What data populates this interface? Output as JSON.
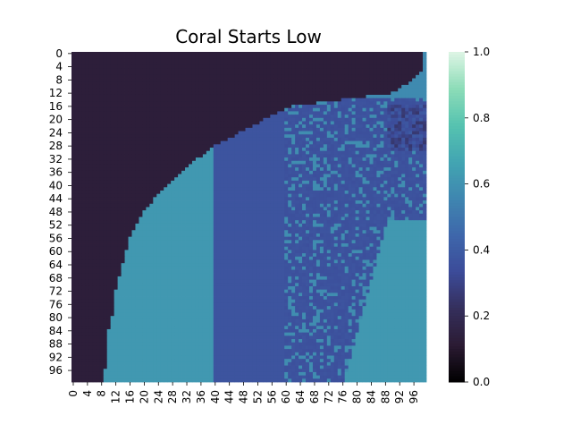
{
  "chart_data": {
    "type": "heatmap",
    "title": "Coral Starts Low",
    "xlabel": "",
    "ylabel": "",
    "rows": 100,
    "cols": 100,
    "x_tick_labels": [
      "0",
      "4",
      "8",
      "12",
      "16",
      "20",
      "24",
      "28",
      "32",
      "36",
      "40",
      "44",
      "48",
      "52",
      "56",
      "60",
      "64",
      "68",
      "72",
      "76",
      "80",
      "84",
      "88",
      "92",
      "96"
    ],
    "y_tick_labels": [
      "0",
      "4",
      "8",
      "12",
      "16",
      "20",
      "24",
      "28",
      "32",
      "36",
      "40",
      "44",
      "48",
      "52",
      "56",
      "60",
      "64",
      "68",
      "72",
      "76",
      "80",
      "84",
      "88",
      "92",
      "96"
    ],
    "colorbar": {
      "vmin": 0.0,
      "vmax": 1.0,
      "tick_labels": [
        "0.0",
        "0.2",
        "0.4",
        "0.6",
        "0.8",
        "1.0"
      ],
      "stops": [
        "#000000",
        "#2b1b33",
        "#352f5c",
        "#3c4b99",
        "#3e67ab",
        "#3f86b0",
        "#42a5b2",
        "#56c3b0",
        "#8ddcb8",
        "#def5e5"
      ]
    },
    "boundary_row_start_col": {
      "rows": [
        0,
        2,
        4,
        8,
        12,
        16,
        20,
        24,
        28,
        32,
        36,
        40,
        44,
        48,
        52,
        56,
        60,
        64,
        68,
        72,
        76,
        80,
        84,
        88,
        92,
        96,
        99
      ],
      "cols": [
        99,
        99,
        99,
        96,
        90,
        62,
        54,
        47,
        40,
        35,
        31,
        27,
        23,
        20,
        18,
        16,
        15,
        14,
        13,
        12,
        12,
        11,
        10,
        10,
        10,
        9,
        9
      ]
    },
    "regions": {
      "dark_value": 0.13,
      "teal_value": 0.62,
      "band_value": 0.37,
      "noisy_low": 0.33,
      "noisy_high": 0.58,
      "band_start_col": 40,
      "noise_start_col": 60
    }
  }
}
